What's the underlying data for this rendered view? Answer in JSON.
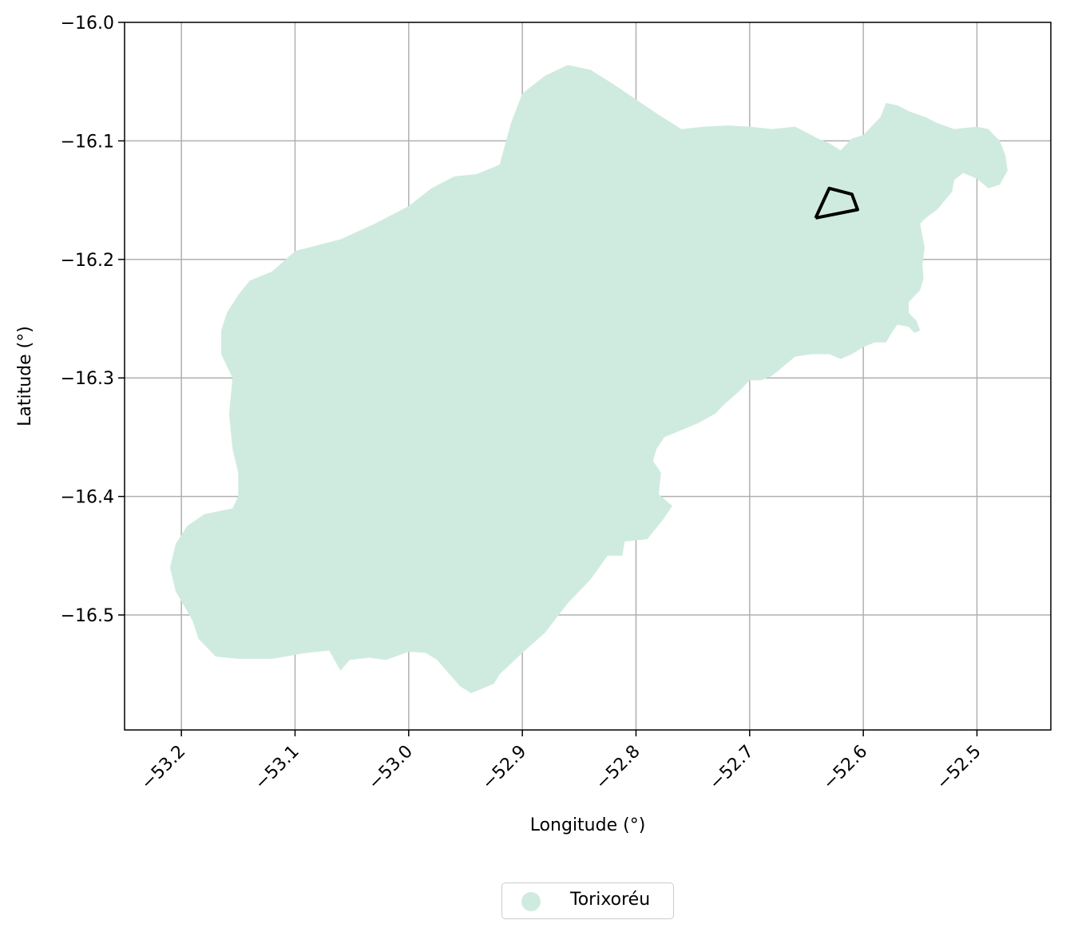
{
  "chart_data": {
    "type": "map",
    "xlabel": "Longitude (°)",
    "ylabel": "Latitude (°)",
    "xlim": [
      -53.25,
      -52.435
    ],
    "ylim": [
      -16.597,
      -16.0
    ],
    "xticks": [
      -53.2,
      -53.1,
      -53.0,
      -52.9,
      -52.8,
      -52.7,
      -52.6,
      -52.5
    ],
    "xtick_labels": [
      "−53.2",
      "−53.1",
      "−53.0",
      "−52.9",
      "−52.8",
      "−52.7",
      "−52.6",
      "−52.5"
    ],
    "yticks": [
      -16.0,
      -16.1,
      -16.2,
      -16.3,
      -16.4,
      -16.5
    ],
    "ytick_labels": [
      "−16.0",
      "−16.1",
      "−16.2",
      "−16.3",
      "−16.4",
      "−16.5"
    ],
    "grid": true,
    "legend_placement": "bottom-center",
    "regions": [
      {
        "name": "Torixoréu",
        "color": "#cfebdf",
        "outline": [
          [
            -53.06,
            -16.547
          ],
          [
            -53.052,
            -16.538
          ],
          [
            -53.035,
            -16.536
          ],
          [
            -53.02,
            -16.538
          ],
          [
            -53.0,
            -16.531
          ],
          [
            -52.985,
            -16.532
          ],
          [
            -52.975,
            -16.538
          ],
          [
            -52.955,
            -16.56
          ],
          [
            -52.945,
            -16.566
          ],
          [
            -52.925,
            -16.558
          ],
          [
            -52.92,
            -16.55
          ],
          [
            -52.9,
            -16.532
          ],
          [
            -52.88,
            -16.515
          ],
          [
            -52.86,
            -16.49
          ],
          [
            -52.84,
            -16.47
          ],
          [
            -52.825,
            -16.45
          ],
          [
            -52.812,
            -16.45
          ],
          [
            -52.81,
            -16.438
          ],
          [
            -52.79,
            -16.436
          ],
          [
            -52.775,
            -16.418
          ],
          [
            -52.768,
            -16.408
          ],
          [
            -52.78,
            -16.398
          ],
          [
            -52.778,
            -16.38
          ],
          [
            -52.785,
            -16.37
          ],
          [
            -52.782,
            -16.36
          ],
          [
            -52.775,
            -16.35
          ],
          [
            -52.755,
            -16.342
          ],
          [
            -52.745,
            -16.338
          ],
          [
            -52.73,
            -16.33
          ],
          [
            -52.722,
            -16.322
          ],
          [
            -52.71,
            -16.312
          ],
          [
            -52.7,
            -16.302
          ],
          [
            -52.69,
            -16.302
          ],
          [
            -52.68,
            -16.298
          ],
          [
            -52.67,
            -16.29
          ],
          [
            -52.66,
            -16.282
          ],
          [
            -52.645,
            -16.28
          ],
          [
            -52.63,
            -16.28
          ],
          [
            -52.62,
            -16.284
          ],
          [
            -52.61,
            -16.28
          ],
          [
            -52.6,
            -16.274
          ],
          [
            -52.59,
            -16.27
          ],
          [
            -52.58,
            -16.27
          ],
          [
            -52.575,
            -16.262
          ],
          [
            -52.57,
            -16.255
          ],
          [
            -52.56,
            -16.257
          ],
          [
            -52.555,
            -16.262
          ],
          [
            -52.55,
            -16.26
          ],
          [
            -52.553,
            -16.252
          ],
          [
            -52.56,
            -16.245
          ],
          [
            -52.56,
            -16.236
          ],
          [
            -52.55,
            -16.226
          ],
          [
            -52.547,
            -16.216
          ],
          [
            -52.548,
            -16.205
          ],
          [
            -52.546,
            -16.19
          ],
          [
            -52.55,
            -16.17
          ],
          [
            -52.545,
            -16.165
          ],
          [
            -52.535,
            -16.158
          ],
          [
            -52.528,
            -16.15
          ],
          [
            -52.522,
            -16.143
          ],
          [
            -52.52,
            -16.133
          ],
          [
            -52.512,
            -16.127
          ],
          [
            -52.5,
            -16.132
          ],
          [
            -52.49,
            -16.14
          ],
          [
            -52.48,
            -16.137
          ],
          [
            -52.473,
            -16.125
          ],
          [
            -52.475,
            -16.112
          ],
          [
            -52.48,
            -16.1
          ],
          [
            -52.49,
            -16.09
          ],
          [
            -52.5,
            -16.088
          ],
          [
            -52.52,
            -16.09
          ],
          [
            -52.535,
            -16.085
          ],
          [
            -52.545,
            -16.08
          ],
          [
            -52.56,
            -16.075
          ],
          [
            -52.57,
            -16.07
          ],
          [
            -52.58,
            -16.068
          ],
          [
            -52.585,
            -16.08
          ],
          [
            -52.59,
            -16.085
          ],
          [
            -52.6,
            -16.095
          ],
          [
            -52.61,
            -16.098
          ],
          [
            -52.62,
            -16.108
          ],
          [
            -52.63,
            -16.102
          ],
          [
            -52.64,
            -16.098
          ],
          [
            -52.66,
            -16.088
          ],
          [
            -52.68,
            -16.09
          ],
          [
            -52.7,
            -16.088
          ],
          [
            -52.72,
            -16.087
          ],
          [
            -52.74,
            -16.088
          ],
          [
            -52.76,
            -16.09
          ],
          [
            -52.78,
            -16.078
          ],
          [
            -52.8,
            -16.065
          ],
          [
            -52.82,
            -16.052
          ],
          [
            -52.84,
            -16.04
          ],
          [
            -52.86,
            -16.036
          ],
          [
            -52.88,
            -16.045
          ],
          [
            -52.9,
            -16.06
          ],
          [
            -52.91,
            -16.085
          ],
          [
            -52.92,
            -16.12
          ],
          [
            -52.94,
            -16.128
          ],
          [
            -52.96,
            -16.13
          ],
          [
            -52.98,
            -16.14
          ],
          [
            -53.0,
            -16.155
          ],
          [
            -53.03,
            -16.17
          ],
          [
            -53.06,
            -16.183
          ],
          [
            -53.1,
            -16.193
          ],
          [
            -53.12,
            -16.21
          ],
          [
            -53.14,
            -16.218
          ],
          [
            -53.15,
            -16.23
          ],
          [
            -53.16,
            -16.245
          ],
          [
            -53.165,
            -16.26
          ],
          [
            -53.165,
            -16.28
          ],
          [
            -53.155,
            -16.3
          ],
          [
            -53.158,
            -16.33
          ],
          [
            -53.155,
            -16.36
          ],
          [
            -53.15,
            -16.38
          ],
          [
            -53.15,
            -16.4
          ],
          [
            -53.155,
            -16.41
          ],
          [
            -53.18,
            -16.415
          ],
          [
            -53.195,
            -16.425
          ],
          [
            -53.205,
            -16.44
          ],
          [
            -53.21,
            -16.46
          ],
          [
            -53.205,
            -16.48
          ],
          [
            -53.19,
            -16.505
          ],
          [
            -53.185,
            -16.52
          ],
          [
            -53.17,
            -16.535
          ],
          [
            -53.15,
            -16.537
          ],
          [
            -53.12,
            -16.537
          ],
          [
            -53.09,
            -16.532
          ],
          [
            -53.07,
            -16.53
          ]
        ]
      }
    ],
    "boundary_lines": [
      {
        "color": "#000000",
        "coords": [
          [
            -52.642,
            -16.165
          ],
          [
            -52.63,
            -16.14
          ],
          [
            -52.61,
            -16.145
          ],
          [
            -52.605,
            -16.158
          ],
          [
            -52.642,
            -16.165
          ]
        ]
      }
    ]
  }
}
